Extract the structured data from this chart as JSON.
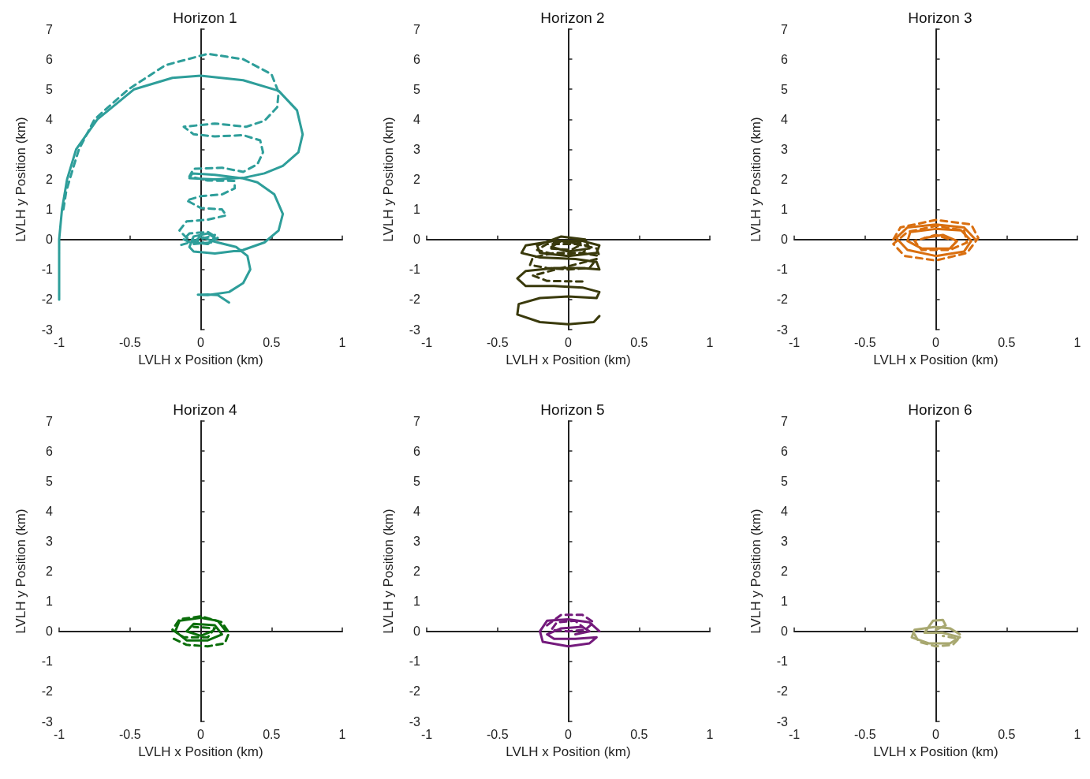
{
  "chart_data": [
    {
      "type": "line",
      "title": "Horizon 1",
      "xlabel": "LVLH x Position (km)",
      "ylabel": "LVLH y Position (km)",
      "xlim": [
        -1,
        1
      ],
      "xticks": [
        -1,
        -0.5,
        0,
        0.5,
        1
      ],
      "ylim": [
        -3,
        7
      ],
      "yticks": [
        -3,
        -2,
        -1,
        0,
        1,
        2,
        3,
        4,
        5,
        6,
        7
      ],
      "marker": "none",
      "series": [
        {
          "color": "#2e9e9a",
          "line_style": "solid",
          "x": [
            -1,
            -1,
            -1,
            -0.98,
            -0.944,
            -0.88,
            -0.73,
            -0.47,
            -0.2,
            0,
            0.3,
            0.55,
            0.68,
            0.72,
            0.69,
            0.58,
            0.45,
            0.3,
            0.1,
            -0.08,
            -0.06,
            0.1,
            0.3,
            0.4,
            0.52,
            0.58,
            0.55,
            0.45,
            0.3,
            0.1,
            -0.05,
            -0.08,
            -0.05,
            0.05,
            0.1,
            0.05,
            -0.05,
            0,
            0.08,
            0.12,
            0.25,
            0.33,
            0.35,
            0.3,
            0.2,
            0.05,
            -0.02,
            0.05,
            0.12,
            0.2
          ],
          "values": [
            -2,
            -1,
            0,
            1,
            2,
            3,
            4,
            5,
            5.38,
            5.45,
            5.3,
            4.95,
            4.3,
            3.5,
            2.9,
            2.45,
            2.2,
            2.05,
            2,
            2.04,
            2.2,
            2.15,
            2.03,
            1.9,
            1.5,
            0.85,
            0.3,
            -0.1,
            -0.35,
            -0.47,
            -0.4,
            -0.25,
            0.1,
            0.2,
            0.05,
            -0.15,
            -0.1,
            0.1,
            -0.05,
            -0.1,
            -0.25,
            -0.55,
            -1,
            -1.45,
            -1.75,
            -1.85,
            -1.84,
            -1.83,
            -1.85,
            -2.1
          ]
        },
        {
          "color": "#2e9e9a",
          "line_style": "dashed",
          "x": [
            -0.97,
            -0.95,
            -0.9,
            -0.86,
            -0.75,
            -0.51,
            -0.25,
            0.05,
            0.3,
            0.5,
            0.55,
            0.54,
            0.45,
            0.32,
            0.1,
            -0.12,
            -0.05,
            0.1,
            0.3,
            0.42,
            0.44,
            0.4,
            0.3,
            0.15,
            -0.05,
            -0.08,
            0.05,
            0.24,
            0.24,
            0.15,
            0,
            -0.1,
            0,
            0.15,
            0.18,
            0.05,
            -0.1,
            -0.15,
            -0.1,
            0.05,
            0.12,
            0.05,
            -0.08,
            -0.12,
            -0.05,
            0.08,
            0.1,
            -0.15
          ],
          "values": [
            1,
            1.6,
            2.4,
            3,
            4,
            5,
            5.8,
            6.18,
            6,
            5.5,
            4.9,
            4.4,
            3.95,
            3.75,
            3.86,
            3.75,
            3.5,
            3.43,
            3.47,
            3.3,
            2.9,
            2.5,
            2.25,
            2.39,
            2.35,
            2.1,
            1.96,
            1.95,
            1.7,
            1.5,
            1.44,
            1.3,
            1.05,
            1,
            0.8,
            0.66,
            0.6,
            0.3,
            0.05,
            -0.15,
            0.05,
            0.25,
            0.2,
            0,
            -0.15,
            -0.1,
            0.15,
            -0.2
          ]
        }
      ]
    },
    {
      "type": "line",
      "title": "Horizon 2",
      "xlabel": "LVLH x Position (km)",
      "ylabel": "LVLH y Position (km)",
      "xlim": [
        -1,
        1
      ],
      "xticks": [
        -1,
        -0.5,
        0,
        0.5,
        1
      ],
      "ylim": [
        -3,
        7
      ],
      "yticks": [
        -3,
        -2,
        -1,
        0,
        1,
        2,
        3,
        4,
        5,
        6,
        7
      ],
      "marker": "none",
      "series": [
        {
          "color": "#3a3a0c",
          "line_style": "solid",
          "x": [
            0.22,
            0.18,
            0,
            -0.2,
            -0.36,
            -0.35,
            -0.2,
            0,
            0.2,
            0.22,
            0.1,
            -0.1,
            -0.3,
            -0.36,
            -0.3,
            -0.1,
            0.1,
            0.22,
            0.2,
            0.05,
            -0.2,
            -0.33,
            -0.3,
            -0.1,
            0.1,
            0.22,
            0.2,
            0,
            -0.2,
            -0.22,
            -0.05,
            0.12,
            0.15,
            0,
            -0.12,
            -0.05,
            0.08
          ],
          "values": [
            -2.55,
            -2.75,
            -2.82,
            -2.75,
            -2.5,
            -2.15,
            -1.95,
            -1.9,
            -1.95,
            -1.75,
            -1.6,
            -1.55,
            -1.55,
            -1.3,
            -1.05,
            -0.95,
            -0.95,
            -1,
            -0.75,
            -0.65,
            -0.6,
            -0.45,
            -0.2,
            -0.05,
            -0.05,
            -0.2,
            -0.45,
            -0.55,
            -0.45,
            -0.2,
            0.1,
            0,
            -0.3,
            -0.4,
            -0.25,
            -0.05,
            -0.15
          ]
        },
        {
          "color": "#3a3a0c",
          "line_style": "dashed",
          "x": [
            0.1,
            -0.15,
            -0.25,
            0.2,
            0.15,
            0,
            -0.15,
            -0.27,
            -0.25,
            -0.1,
            0.1,
            0.22,
            0.2,
            0.05,
            -0.15,
            -0.22,
            -0.1,
            0.1,
            0.15,
            0.05,
            -0.1,
            -0.12,
            0.02,
            0.08
          ],
          "values": [
            -1.4,
            -1.38,
            -1.2,
            -0.65,
            -0.95,
            -1,
            -0.95,
            -0.85,
            -0.6,
            -0.45,
            -0.45,
            -0.55,
            -0.3,
            -0.15,
            -0.15,
            -0.35,
            -0.5,
            -0.45,
            -0.25,
            -0.05,
            -0.1,
            -0.3,
            -0.35,
            -0.2
          ]
        }
      ]
    },
    {
      "type": "line",
      "title": "Horizon 3",
      "xlabel": "LVLH x Position (km)",
      "ylabel": "LVLH y Position (km)",
      "xlim": [
        -1,
        1
      ],
      "xticks": [
        -1,
        -0.5,
        0,
        0.5,
        1
      ],
      "ylim": [
        -3,
        7
      ],
      "yticks": [
        -3,
        -2,
        -1,
        0,
        1,
        2,
        3,
        4,
        5,
        6,
        7
      ],
      "marker": "none",
      "series": [
        {
          "color": "#d96f10",
          "line_style": "solid",
          "x": [
            0.28,
            0.2,
            0,
            -0.2,
            -0.28,
            -0.2,
            0,
            0.2,
            0.25,
            0.18,
            0,
            -0.18,
            -0.2,
            -0.1,
            0.1,
            0.15,
            0.05,
            -0.08
          ],
          "values": [
            0,
            0.4,
            0.5,
            0.4,
            0.05,
            -0.35,
            -0.55,
            -0.4,
            -0.05,
            0.3,
            0.35,
            0.25,
            -0.05,
            -0.3,
            -0.3,
            -0.05,
            0.15,
            0.05
          ]
        },
        {
          "color": "#d96f10",
          "line_style": "dashed",
          "x": [
            -0.3,
            -0.25,
            0,
            0.25,
            0.3,
            0.22,
            0,
            -0.22,
            -0.3,
            -0.2,
            0,
            0.2,
            0.22,
            0.1,
            -0.1,
            -0.15,
            0,
            0.1
          ],
          "values": [
            0,
            0.4,
            0.65,
            0.5,
            0.05,
            -0.45,
            -0.7,
            -0.55,
            -0.15,
            0.25,
            0.45,
            0.3,
            -0.1,
            -0.35,
            -0.35,
            -0.05,
            0.15,
            0
          ]
        }
      ]
    },
    {
      "type": "line",
      "title": "Horizon 4",
      "xlabel": "LVLH x Position (km)",
      "ylabel": "LVLH y Position (km)",
      "xlim": [
        -1,
        1
      ],
      "xticks": [
        -1,
        -0.5,
        0,
        0.5,
        1
      ],
      "ylim": [
        -3,
        7
      ],
      "yticks": [
        -3,
        -2,
        -1,
        0,
        1,
        2,
        3,
        4,
        5,
        6,
        7
      ],
      "marker": "none",
      "series": [
        {
          "color": "#0b6e0b",
          "line_style": "solid",
          "x": [
            0.18,
            0.12,
            0,
            -0.15,
            -0.18,
            -0.1,
            0.05,
            0.15,
            0.1,
            -0.05,
            -0.1,
            0,
            0.08
          ],
          "values": [
            0,
            0.35,
            0.45,
            0.35,
            0,
            -0.3,
            -0.3,
            -0.1,
            0.2,
            0.25,
            0,
            -0.15,
            0
          ]
        },
        {
          "color": "#0b6e0b",
          "line_style": "dashed",
          "x": [
            -0.19,
            -0.1,
            0.05,
            0.17,
            0.2,
            0.15,
            0,
            -0.15,
            -0.2,
            -0.12,
            0.05,
            0.1,
            -0.05
          ],
          "values": [
            -0.25,
            -0.45,
            -0.5,
            -0.4,
            -0.05,
            0.3,
            0.5,
            0.4,
            0.05,
            -0.2,
            -0.2,
            0.1,
            0.15
          ]
        }
      ]
    },
    {
      "type": "line",
      "title": "Horizon 5",
      "xlabel": "LVLH x Position (km)",
      "ylabel": "LVLH y Position (km)",
      "xlim": [
        -1,
        1
      ],
      "xticks": [
        -1,
        -0.5,
        0,
        0.5,
        1
      ],
      "ylim": [
        -3,
        7
      ],
      "yticks": [
        -3,
        -2,
        -1,
        0,
        1,
        2,
        3,
        4,
        5,
        6,
        7
      ],
      "marker": "none",
      "series": [
        {
          "color": "#741a7c",
          "line_style": "solid",
          "x": [
            0.22,
            0.15,
            0,
            -0.15,
            -0.2,
            -0.18,
            0,
            0.15,
            0.2,
            0.05,
            -0.1,
            -0.15,
            -0.05,
            0.1,
            0.15,
            0.05
          ],
          "values": [
            0,
            0.3,
            0.4,
            0.35,
            0,
            -0.35,
            -0.5,
            -0.4,
            -0.2,
            -0.25,
            -0.25,
            -0.1,
            0.1,
            0.15,
            0,
            -0.1
          ]
        },
        {
          "color": "#741a7c",
          "line_style": "dashed",
          "x": [
            -0.15,
            -0.05,
            0.1,
            0.18,
            0.12,
            0,
            -0.12,
            -0.08,
            0.05,
            0.1
          ],
          "values": [
            0.2,
            0.55,
            0.55,
            0.3,
            0.05,
            0,
            0.05,
            0.3,
            0.35,
            0.15
          ]
        }
      ]
    },
    {
      "type": "line",
      "title": "Horizon 6",
      "xlabel": "LVLH x Position (km)",
      "ylabel": "LVLH y Position (km)",
      "xlim": [
        -1,
        1
      ],
      "xticks": [
        -1,
        -0.5,
        0,
        0.5,
        1
      ],
      "ylim": [
        -3,
        7
      ],
      "yticks": [
        -3,
        -2,
        -1,
        0,
        1,
        2,
        3,
        4,
        5,
        6,
        7
      ],
      "marker": "none",
      "series": [
        {
          "color": "#a8a870",
          "line_style": "solid",
          "x": [
            0.17,
            0.1,
            0,
            -0.15,
            -0.17,
            -0.05,
            0.1,
            0.17,
            0.05,
            -0.08,
            -0.05,
            -0.02,
            0.05,
            0.07,
            0
          ],
          "values": [
            -0.1,
            0.1,
            0.15,
            0.05,
            -0.2,
            -0.4,
            -0.4,
            -0.2,
            -0.05,
            -0.05,
            0.15,
            0.35,
            0.38,
            0.2,
            0.05
          ]
        },
        {
          "color": "#a8a870",
          "line_style": "dashed",
          "x": [
            -0.15,
            -0.12,
            0,
            0.12,
            0.16,
            0.05
          ],
          "values": [
            -0.1,
            -0.35,
            -0.5,
            -0.45,
            -0.25,
            -0.15
          ]
        }
      ]
    }
  ]
}
